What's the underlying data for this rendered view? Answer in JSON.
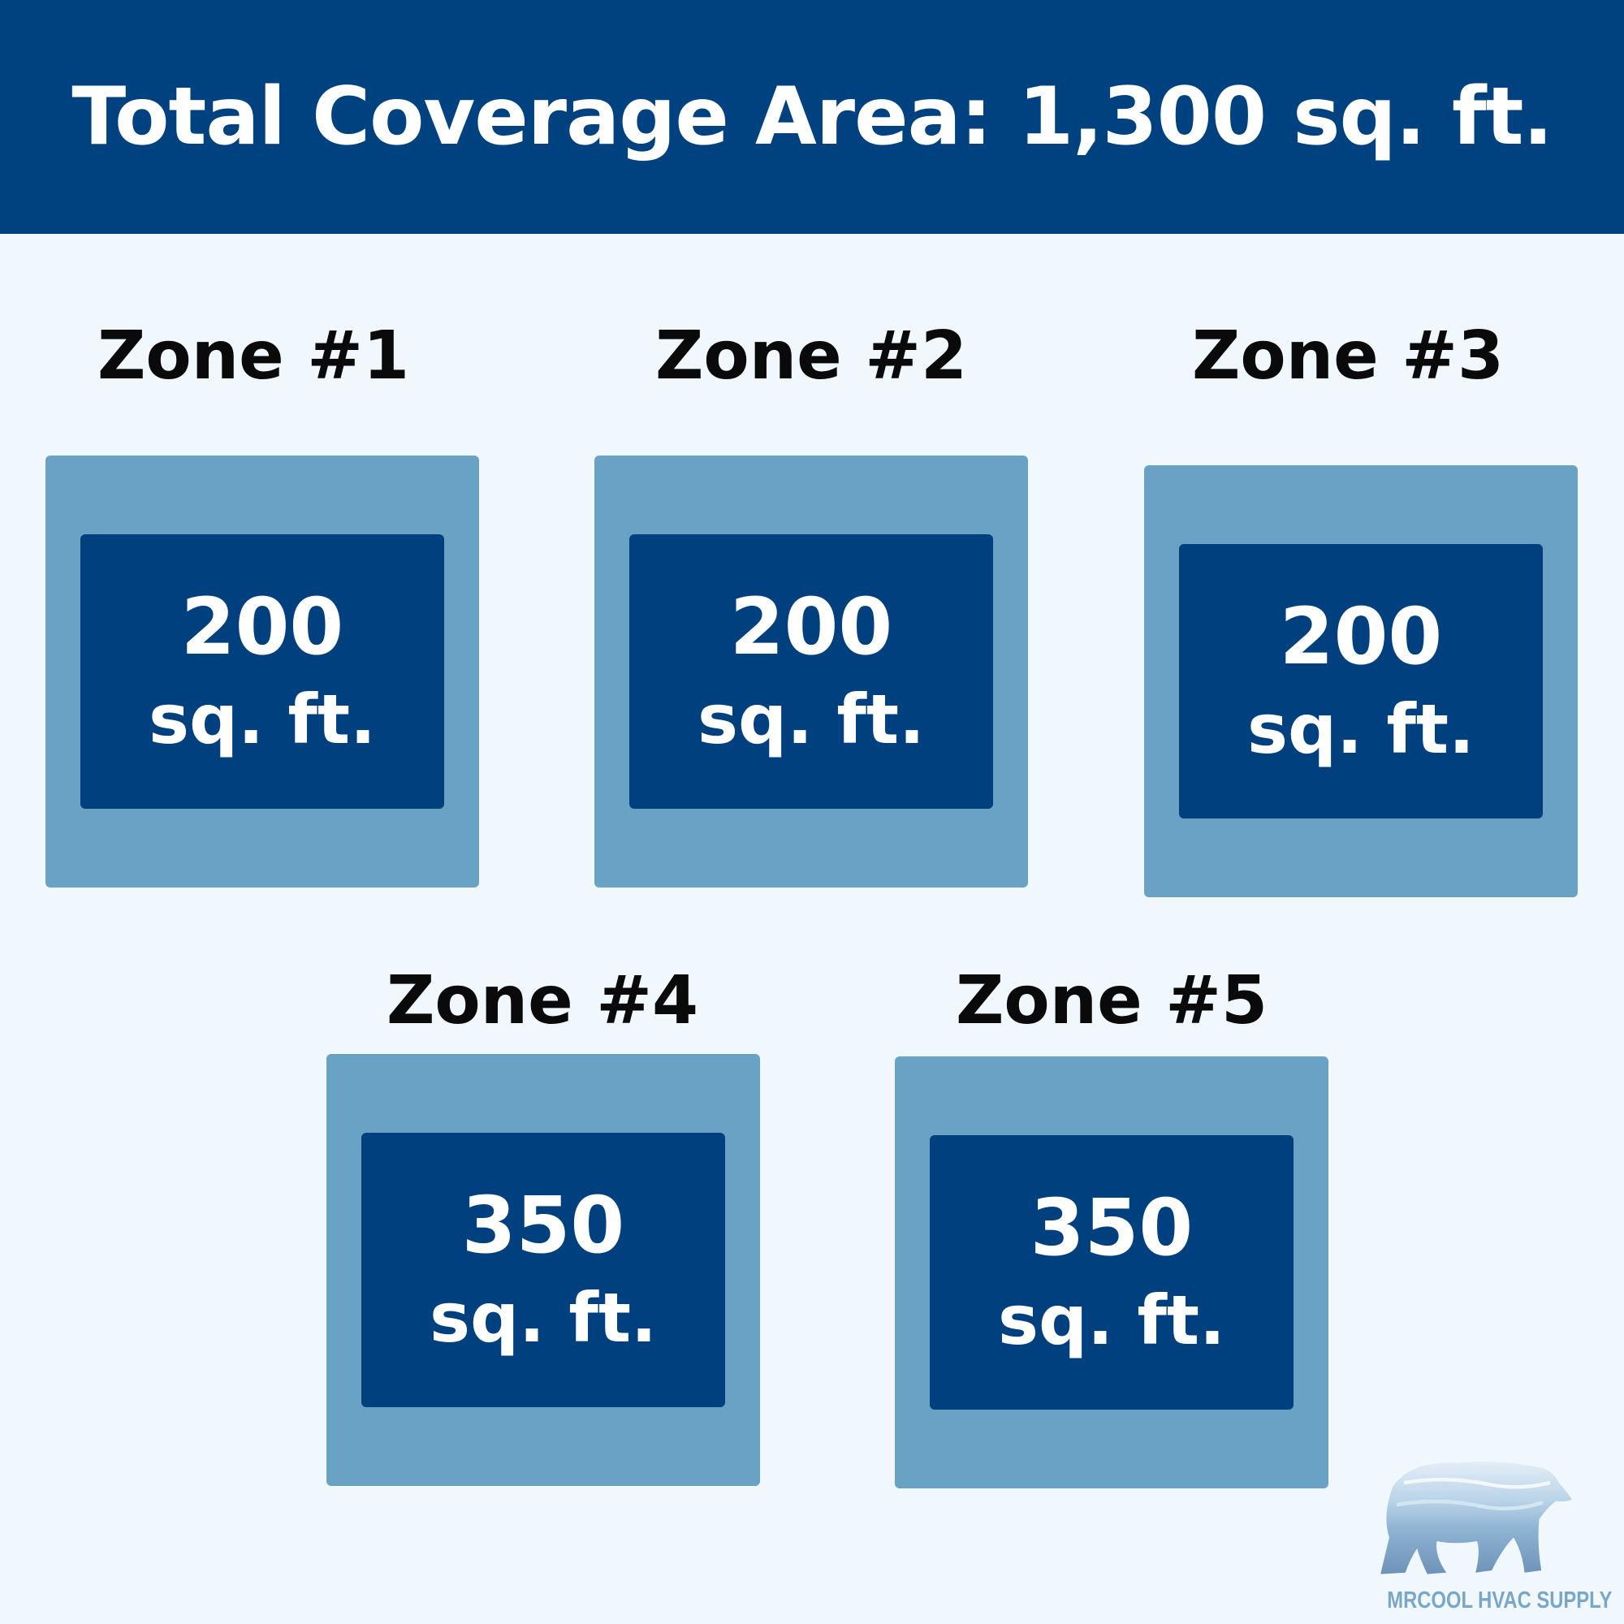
{
  "header": {
    "title": "Total Coverage Area: 1,300 sq. ft."
  },
  "zones": [
    {
      "label": "Zone #1",
      "value": "200",
      "unit": "sq. ft."
    },
    {
      "label": "Zone #2",
      "value": "200",
      "unit": "sq. ft."
    },
    {
      "label": "Zone #3",
      "value": "200",
      "unit": "sq. ft."
    },
    {
      "label": "Zone #4",
      "value": "350",
      "unit": "sq. ft."
    },
    {
      "label": "Zone #5",
      "value": "350",
      "unit": "sq. ft."
    }
  ],
  "logo": {
    "text": "MRCOOL HVAC SUPPLY",
    "icon": "polar-bear-icon"
  },
  "colors": {
    "header": "#00417f",
    "background": "#f0f8fd",
    "zone_outer": "#6aa2c6",
    "zone_inner": "#00407f"
  }
}
